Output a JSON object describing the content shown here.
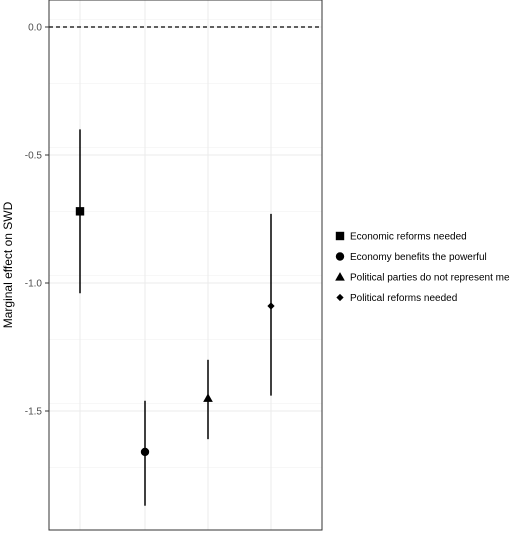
{
  "chart_data": {
    "type": "scatter",
    "subtype": "point-range",
    "title": "",
    "xlabel": "",
    "ylabel": "Marginal effect on SWD",
    "ylim": [
      -1.95,
      0.03
    ],
    "y_ticks": [
      0.0,
      -0.5,
      -1.0,
      -1.5
    ],
    "y_tick_labels": [
      "0.0",
      "-0.5",
      "-1.0",
      "-1.5"
    ],
    "reference_line": {
      "y": 0.0,
      "style": "dashed"
    },
    "grid": true,
    "legend_position": "right",
    "series": [
      {
        "name": "Economic reforms needed",
        "shape": "square",
        "x": 1,
        "estimate": -0.72,
        "lower": -1.04,
        "upper": -0.4
      },
      {
        "name": "Economy benefits the powerful",
        "shape": "circle",
        "x": 2,
        "estimate": -1.66,
        "lower": -1.87,
        "upper": -1.46
      },
      {
        "name": "Political parties do not represent me",
        "shape": "triangle",
        "x": 3,
        "estimate": -1.45,
        "lower": -1.61,
        "upper": -1.3
      },
      {
        "name": "Political reforms needed",
        "shape": "diamond",
        "x": 4,
        "estimate": -1.09,
        "lower": -1.44,
        "upper": -0.73
      }
    ]
  }
}
